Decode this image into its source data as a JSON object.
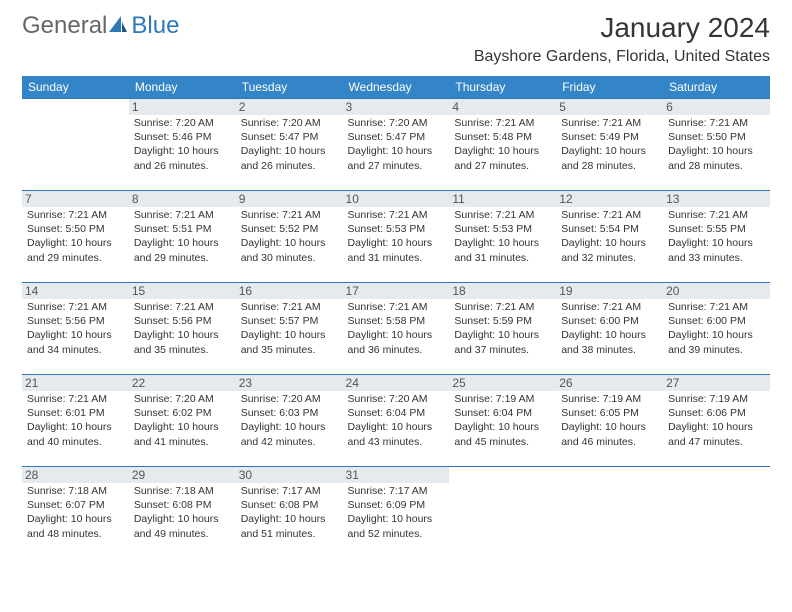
{
  "logo": {
    "text1": "General",
    "text2": "Blue"
  },
  "title": "January 2024",
  "location": "Bayshore Gardens, Florida, United States",
  "colors": {
    "header_bg": "#3485c7",
    "border": "#2f78b7",
    "daynum_bg": "#e5eaef",
    "text": "#333333"
  },
  "weekdays": [
    "Sunday",
    "Monday",
    "Tuesday",
    "Wednesday",
    "Thursday",
    "Friday",
    "Saturday"
  ],
  "weeks": [
    [
      null,
      {
        "n": "1",
        "sr": "Sunrise: 7:20 AM",
        "ss": "Sunset: 5:46 PM",
        "d1": "Daylight: 10 hours",
        "d2": "and 26 minutes."
      },
      {
        "n": "2",
        "sr": "Sunrise: 7:20 AM",
        "ss": "Sunset: 5:47 PM",
        "d1": "Daylight: 10 hours",
        "d2": "and 26 minutes."
      },
      {
        "n": "3",
        "sr": "Sunrise: 7:20 AM",
        "ss": "Sunset: 5:47 PM",
        "d1": "Daylight: 10 hours",
        "d2": "and 27 minutes."
      },
      {
        "n": "4",
        "sr": "Sunrise: 7:21 AM",
        "ss": "Sunset: 5:48 PM",
        "d1": "Daylight: 10 hours",
        "d2": "and 27 minutes."
      },
      {
        "n": "5",
        "sr": "Sunrise: 7:21 AM",
        "ss": "Sunset: 5:49 PM",
        "d1": "Daylight: 10 hours",
        "d2": "and 28 minutes."
      },
      {
        "n": "6",
        "sr": "Sunrise: 7:21 AM",
        "ss": "Sunset: 5:50 PM",
        "d1": "Daylight: 10 hours",
        "d2": "and 28 minutes."
      }
    ],
    [
      {
        "n": "7",
        "sr": "Sunrise: 7:21 AM",
        "ss": "Sunset: 5:50 PM",
        "d1": "Daylight: 10 hours",
        "d2": "and 29 minutes."
      },
      {
        "n": "8",
        "sr": "Sunrise: 7:21 AM",
        "ss": "Sunset: 5:51 PM",
        "d1": "Daylight: 10 hours",
        "d2": "and 29 minutes."
      },
      {
        "n": "9",
        "sr": "Sunrise: 7:21 AM",
        "ss": "Sunset: 5:52 PM",
        "d1": "Daylight: 10 hours",
        "d2": "and 30 minutes."
      },
      {
        "n": "10",
        "sr": "Sunrise: 7:21 AM",
        "ss": "Sunset: 5:53 PM",
        "d1": "Daylight: 10 hours",
        "d2": "and 31 minutes."
      },
      {
        "n": "11",
        "sr": "Sunrise: 7:21 AM",
        "ss": "Sunset: 5:53 PM",
        "d1": "Daylight: 10 hours",
        "d2": "and 31 minutes."
      },
      {
        "n": "12",
        "sr": "Sunrise: 7:21 AM",
        "ss": "Sunset: 5:54 PM",
        "d1": "Daylight: 10 hours",
        "d2": "and 32 minutes."
      },
      {
        "n": "13",
        "sr": "Sunrise: 7:21 AM",
        "ss": "Sunset: 5:55 PM",
        "d1": "Daylight: 10 hours",
        "d2": "and 33 minutes."
      }
    ],
    [
      {
        "n": "14",
        "sr": "Sunrise: 7:21 AM",
        "ss": "Sunset: 5:56 PM",
        "d1": "Daylight: 10 hours",
        "d2": "and 34 minutes."
      },
      {
        "n": "15",
        "sr": "Sunrise: 7:21 AM",
        "ss": "Sunset: 5:56 PM",
        "d1": "Daylight: 10 hours",
        "d2": "and 35 minutes."
      },
      {
        "n": "16",
        "sr": "Sunrise: 7:21 AM",
        "ss": "Sunset: 5:57 PM",
        "d1": "Daylight: 10 hours",
        "d2": "and 35 minutes."
      },
      {
        "n": "17",
        "sr": "Sunrise: 7:21 AM",
        "ss": "Sunset: 5:58 PM",
        "d1": "Daylight: 10 hours",
        "d2": "and 36 minutes."
      },
      {
        "n": "18",
        "sr": "Sunrise: 7:21 AM",
        "ss": "Sunset: 5:59 PM",
        "d1": "Daylight: 10 hours",
        "d2": "and 37 minutes."
      },
      {
        "n": "19",
        "sr": "Sunrise: 7:21 AM",
        "ss": "Sunset: 6:00 PM",
        "d1": "Daylight: 10 hours",
        "d2": "and 38 minutes."
      },
      {
        "n": "20",
        "sr": "Sunrise: 7:21 AM",
        "ss": "Sunset: 6:00 PM",
        "d1": "Daylight: 10 hours",
        "d2": "and 39 minutes."
      }
    ],
    [
      {
        "n": "21",
        "sr": "Sunrise: 7:21 AM",
        "ss": "Sunset: 6:01 PM",
        "d1": "Daylight: 10 hours",
        "d2": "and 40 minutes."
      },
      {
        "n": "22",
        "sr": "Sunrise: 7:20 AM",
        "ss": "Sunset: 6:02 PM",
        "d1": "Daylight: 10 hours",
        "d2": "and 41 minutes."
      },
      {
        "n": "23",
        "sr": "Sunrise: 7:20 AM",
        "ss": "Sunset: 6:03 PM",
        "d1": "Daylight: 10 hours",
        "d2": "and 42 minutes."
      },
      {
        "n": "24",
        "sr": "Sunrise: 7:20 AM",
        "ss": "Sunset: 6:04 PM",
        "d1": "Daylight: 10 hours",
        "d2": "and 43 minutes."
      },
      {
        "n": "25",
        "sr": "Sunrise: 7:19 AM",
        "ss": "Sunset: 6:04 PM",
        "d1": "Daylight: 10 hours",
        "d2": "and 45 minutes."
      },
      {
        "n": "26",
        "sr": "Sunrise: 7:19 AM",
        "ss": "Sunset: 6:05 PM",
        "d1": "Daylight: 10 hours",
        "d2": "and 46 minutes."
      },
      {
        "n": "27",
        "sr": "Sunrise: 7:19 AM",
        "ss": "Sunset: 6:06 PM",
        "d1": "Daylight: 10 hours",
        "d2": "and 47 minutes."
      }
    ],
    [
      {
        "n": "28",
        "sr": "Sunrise: 7:18 AM",
        "ss": "Sunset: 6:07 PM",
        "d1": "Daylight: 10 hours",
        "d2": "and 48 minutes."
      },
      {
        "n": "29",
        "sr": "Sunrise: 7:18 AM",
        "ss": "Sunset: 6:08 PM",
        "d1": "Daylight: 10 hours",
        "d2": "and 49 minutes."
      },
      {
        "n": "30",
        "sr": "Sunrise: 7:17 AM",
        "ss": "Sunset: 6:08 PM",
        "d1": "Daylight: 10 hours",
        "d2": "and 51 minutes."
      },
      {
        "n": "31",
        "sr": "Sunrise: 7:17 AM",
        "ss": "Sunset: 6:09 PM",
        "d1": "Daylight: 10 hours",
        "d2": "and 52 minutes."
      },
      null,
      null,
      null
    ]
  ]
}
